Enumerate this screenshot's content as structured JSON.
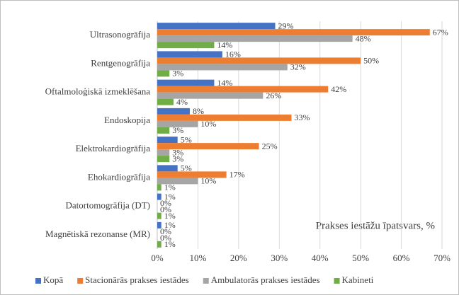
{
  "chart_data": {
    "type": "bar",
    "orientation": "horizontal",
    "x_axis_title": "Prakses iestāžu īpatsvars, %",
    "categories": [
      "Ultrasonogrāfija",
      "Rentgenogrāfija",
      "Oftalmoloģiskā izmeklēšana",
      "Endoskopija",
      "Elektrokardiogrāfija",
      "Ehokardiogrāfija",
      "Datortomogrāfija (DT)",
      "Magnētiskā rezonanse (MR)"
    ],
    "series": [
      {
        "name": "Kopā",
        "color": "#4472c4",
        "values": [
          29,
          16,
          14,
          8,
          5,
          5,
          1,
          1
        ],
        "value_labels": [
          "29%",
          "16%",
          "14%",
          "8%",
          "5%",
          "5%",
          "1%",
          "1%"
        ]
      },
      {
        "name": "Stacionārās prakses iestādes",
        "color": "#ed7d31",
        "values": [
          67,
          50,
          42,
          33,
          25,
          17,
          0,
          0
        ],
        "value_labels": [
          "67%",
          "50%",
          "42%",
          "33%",
          "25%",
          "17%",
          "0%",
          "0%"
        ]
      },
      {
        "name": "Ambulatorās prakses iestādes",
        "color": "#a5a5a5",
        "values": [
          48,
          32,
          26,
          10,
          3,
          10,
          0,
          0
        ],
        "value_labels": [
          "48%",
          "32%",
          "26%",
          "10%",
          "3%",
          "10%",
          "0%",
          "0%"
        ]
      },
      {
        "name": "Kabineti",
        "color": "#70ad47",
        "values": [
          14,
          3,
          4,
          3,
          3,
          1,
          1,
          1
        ],
        "value_labels": [
          "14%",
          "3%",
          "4%",
          "3%",
          "3%",
          "1%",
          "1%",
          "1%"
        ]
      }
    ],
    "xlim": [
      0,
      70
    ],
    "xticks": [
      {
        "value": 0,
        "label": "0%"
      },
      {
        "value": 10,
        "label": "10%"
      },
      {
        "value": 20,
        "label": "20%"
      },
      {
        "value": 30,
        "label": "30%"
      },
      {
        "value": 40,
        "label": "40%"
      },
      {
        "value": 50,
        "label": "50%"
      },
      {
        "value": 60,
        "label": "60%"
      },
      {
        "value": 70,
        "label": "70%"
      }
    ],
    "grid": true,
    "legend": "bottom"
  }
}
